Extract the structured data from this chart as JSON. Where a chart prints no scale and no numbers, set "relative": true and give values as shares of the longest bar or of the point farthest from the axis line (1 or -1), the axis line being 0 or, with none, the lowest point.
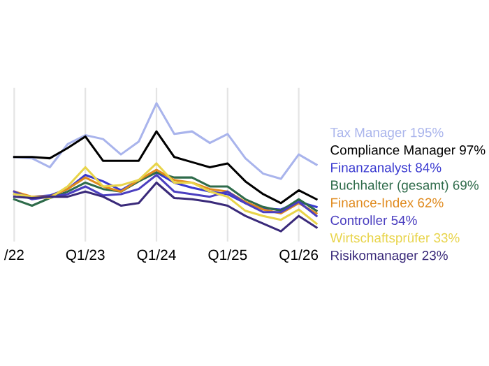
{
  "chart_data": {
    "type": "line",
    "relative": true,
    "grid": "x",
    "legend": false,
    "marker": "none",
    "line_style": "solid",
    "categories": [
      "/22",
      null,
      null,
      null,
      "Q1/23",
      null,
      null,
      null,
      "Q1/24",
      null,
      null,
      null,
      "Q1/25",
      null,
      null,
      null,
      "Q1/26",
      null
    ],
    "series": [
      {
        "name": "Tax Manager 195%",
        "color": "#a9b4ec",
        "values": [
          0.58,
          0.57,
          0.5,
          0.68,
          0.75,
          0.72,
          0.6,
          0.7,
          1,
          0.76,
          0.78,
          0.69,
          0.76,
          0.57,
          0.45,
          0.41,
          0.6,
          0.52
        ]
      },
      {
        "name": "Compliance Manager 97%",
        "color": "#000000",
        "values": [
          0.58,
          0.58,
          0.57,
          0.65,
          0.74,
          0.55,
          0.55,
          0.55,
          0.78,
          0.58,
          0.54,
          0.5,
          0.53,
          0.39,
          0.29,
          0.22,
          0.32,
          0.25
        ]
      },
      {
        "name": "Finanzanalyst 84%",
        "color": "#3a3ad0",
        "values": [
          0.29,
          0.27,
          0.28,
          0.33,
          0.44,
          0.39,
          0.32,
          0.4,
          0.46,
          0.38,
          0.34,
          0.31,
          0.29,
          0.22,
          0.18,
          0.17,
          0.23,
          0.19
        ]
      },
      {
        "name": "Buchhalter (gesamt) 69%",
        "color": "#2e6b4a",
        "values": [
          0.25,
          0.2,
          0.26,
          0.31,
          0.38,
          0.33,
          0.31,
          0.39,
          0.46,
          0.42,
          0.42,
          0.35,
          0.35,
          0.25,
          0.19,
          0.16,
          0.25,
          0.16
        ]
      },
      {
        "name": "Finance-Index 62%",
        "color": "#e08a1e",
        "values": [
          0.31,
          0.27,
          0.27,
          0.33,
          0.42,
          0.35,
          0.31,
          0.4,
          0.48,
          0.4,
          0.38,
          0.33,
          0.31,
          0.23,
          0.17,
          0.14,
          0.22,
          0.14
        ]
      },
      {
        "name": "Controller 54%",
        "color": "#4b3fc0",
        "values": [
          0.31,
          0.25,
          0.27,
          0.29,
          0.35,
          0.28,
          0.29,
          0.33,
          0.44,
          0.31,
          0.29,
          0.27,
          0.31,
          0.22,
          0.15,
          0.15,
          0.23,
          0.12
        ]
      },
      {
        "name": "Wirtschaftsprüfer 33%",
        "color": "#e8d44a",
        "values": [
          0.29,
          0.27,
          0.26,
          0.35,
          0.5,
          0.35,
          0.36,
          0.4,
          0.53,
          0.38,
          0.38,
          0.31,
          0.27,
          0.16,
          0.12,
          0.09,
          0.17,
          0.06
        ]
      },
      {
        "name": "Risikomanager 23%",
        "color": "#3a2a7a",
        "values": [
          0.27,
          0.26,
          0.27,
          0.27,
          0.31,
          0.27,
          0.2,
          0.22,
          0.38,
          0.26,
          0.25,
          0.23,
          0.2,
          0.12,
          0.06,
          0,
          0.12,
          0.03
        ]
      }
    ]
  }
}
